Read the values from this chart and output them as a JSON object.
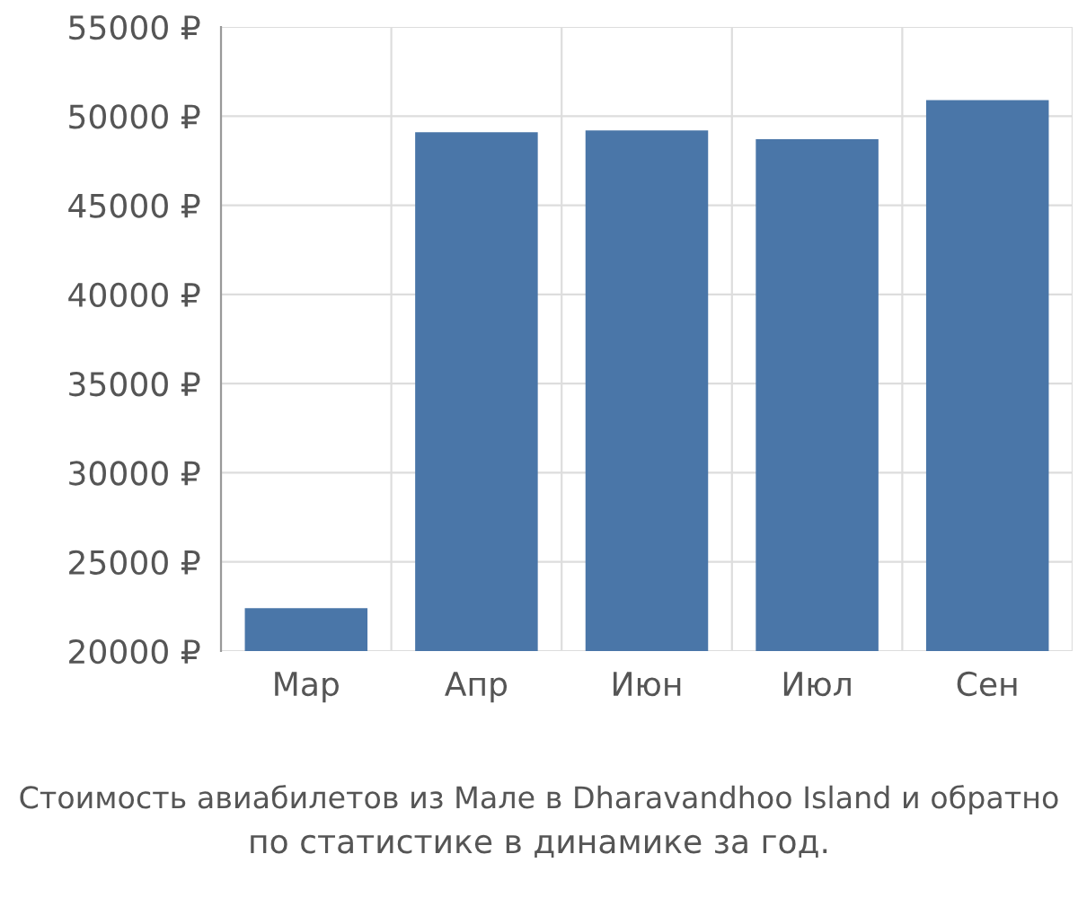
{
  "chart_data": {
    "type": "bar",
    "categories": [
      "Мар",
      "Апр",
      "Июн",
      "Июл",
      "Сен"
    ],
    "values": [
      22400,
      49100,
      49200,
      48700,
      50900
    ],
    "color": "#4a76a8",
    "ylim": [
      20000,
      55000
    ],
    "yticks": [
      {
        "value": 20000,
        "label": "20000 ₽"
      },
      {
        "value": 25000,
        "label": "25000 ₽"
      },
      {
        "value": 30000,
        "label": "30000 ₽"
      },
      {
        "value": 35000,
        "label": "35000 ₽"
      },
      {
        "value": 40000,
        "label": "40000 ₽"
      },
      {
        "value": 45000,
        "label": "45000 ₽"
      },
      {
        "value": 50000,
        "label": "50000 ₽"
      },
      {
        "value": 55000,
        "label": "55000 ₽"
      }
    ],
    "grid": true,
    "annotations": [
      "Стоимость авиабилетов из Мале в Dharavandhoo Island и обратно",
      "по статистике в динамике за год."
    ]
  }
}
